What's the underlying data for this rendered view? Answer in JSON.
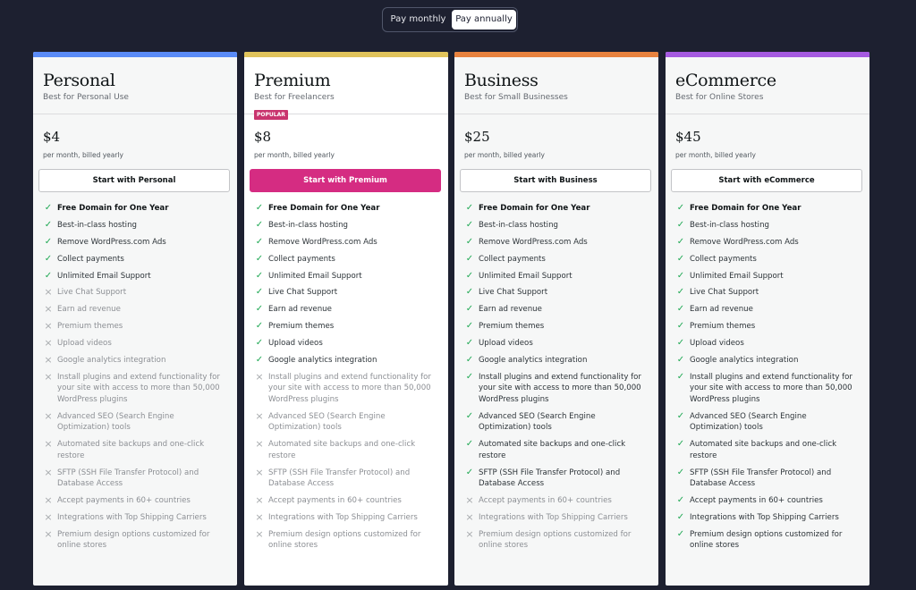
{
  "billing_toggle": {
    "monthly": "Pay monthly",
    "annually": "Pay annually"
  },
  "colors": {
    "background": "#1d2030",
    "personal_accent": "#5a8bf7",
    "premium_accent": "#e0c35b",
    "business_accent": "#e8823e",
    "ecommerce_accent": "#a55ae0",
    "cta_primary": "#d52c82",
    "popular_badge": "#c9356e",
    "check": "#1fa853",
    "cross": "#a7aaad"
  },
  "plans": [
    {
      "name": "Personal",
      "tagline": "Best for Personal Use",
      "price": "$4",
      "billing": "per month, billed yearly",
      "cta": "Start with Personal",
      "features": [
        {
          "text": "Free Domain for One Year",
          "included": true,
          "bold": true
        },
        {
          "text": "Best-in-class hosting",
          "included": true
        },
        {
          "text": "Remove WordPress.com Ads",
          "included": true
        },
        {
          "text": "Collect payments",
          "included": true
        },
        {
          "text": "Unlimited Email Support",
          "included": true
        },
        {
          "text": "Live Chat Support",
          "included": false
        },
        {
          "text": "Earn ad revenue",
          "included": false
        },
        {
          "text": "Premium themes",
          "included": false
        },
        {
          "text": "Upload videos",
          "included": false
        },
        {
          "text": "Google analytics integration",
          "included": false
        },
        {
          "text": "Install plugins and extend functionality for your site with access to more than 50,000 WordPress plugins",
          "included": false
        },
        {
          "text": "Advanced SEO (Search Engine Optimization) tools",
          "included": false
        },
        {
          "text": "Automated site backups and one-click restore",
          "included": false
        },
        {
          "text": "SFTP (SSH File Transfer Protocol) and Database Access",
          "included": false
        },
        {
          "text": "Accept payments in 60+ countries",
          "included": false
        },
        {
          "text": "Integrations with Top Shipping Carriers",
          "included": false
        },
        {
          "text": "Premium design options customized for online stores",
          "included": false
        }
      ]
    },
    {
      "name": "Premium",
      "tagline": "Best for Freelancers",
      "badge": "POPULAR",
      "price": "$8",
      "billing": "per month, billed yearly",
      "cta": "Start with Premium",
      "features": [
        {
          "text": "Free Domain for One Year",
          "included": true,
          "bold": true
        },
        {
          "text": "Best-in-class hosting",
          "included": true
        },
        {
          "text": "Remove WordPress.com Ads",
          "included": true
        },
        {
          "text": "Collect payments",
          "included": true
        },
        {
          "text": "Unlimited Email Support",
          "included": true
        },
        {
          "text": "Live Chat Support",
          "included": true
        },
        {
          "text": "Earn ad revenue",
          "included": true
        },
        {
          "text": "Premium themes",
          "included": true
        },
        {
          "text": "Upload videos",
          "included": true
        },
        {
          "text": "Google analytics integration",
          "included": true
        },
        {
          "text": "Install plugins and extend functionality for your site with access to more than 50,000 WordPress plugins",
          "included": false
        },
        {
          "text": "Advanced SEO (Search Engine Optimization) tools",
          "included": false
        },
        {
          "text": "Automated site backups and one-click restore",
          "included": false
        },
        {
          "text": "SFTP (SSH File Transfer Protocol) and Database Access",
          "included": false
        },
        {
          "text": "Accept payments in 60+ countries",
          "included": false
        },
        {
          "text": "Integrations with Top Shipping Carriers",
          "included": false
        },
        {
          "text": "Premium design options customized for online stores",
          "included": false
        }
      ]
    },
    {
      "name": "Business",
      "tagline": "Best for Small Businesses",
      "price": "$25",
      "billing": "per month, billed yearly",
      "cta": "Start with Business",
      "features": [
        {
          "text": "Free Domain for One Year",
          "included": true,
          "bold": true
        },
        {
          "text": "Best-in-class hosting",
          "included": true
        },
        {
          "text": "Remove WordPress.com Ads",
          "included": true
        },
        {
          "text": "Collect payments",
          "included": true
        },
        {
          "text": "Unlimited Email Support",
          "included": true
        },
        {
          "text": "Live Chat Support",
          "included": true
        },
        {
          "text": "Earn ad revenue",
          "included": true
        },
        {
          "text": "Premium themes",
          "included": true
        },
        {
          "text": "Upload videos",
          "included": true
        },
        {
          "text": "Google analytics integration",
          "included": true
        },
        {
          "text": "Install plugins and extend functionality for your site with access to more than 50,000 WordPress plugins",
          "included": true
        },
        {
          "text": "Advanced SEO (Search Engine Optimization) tools",
          "included": true
        },
        {
          "text": "Automated site backups and one-click restore",
          "included": true
        },
        {
          "text": "SFTP (SSH File Transfer Protocol) and Database Access",
          "included": true
        },
        {
          "text": "Accept payments in 60+ countries",
          "included": false
        },
        {
          "text": "Integrations with Top Shipping Carriers",
          "included": false
        },
        {
          "text": "Premium design options customized for online stores",
          "included": false
        }
      ]
    },
    {
      "name": "eCommerce",
      "tagline": "Best for Online Stores",
      "price": "$45",
      "billing": "per month, billed yearly",
      "cta": "Start with eCommerce",
      "features": [
        {
          "text": "Free Domain for One Year",
          "included": true,
          "bold": true
        },
        {
          "text": "Best-in-class hosting",
          "included": true
        },
        {
          "text": "Remove WordPress.com Ads",
          "included": true
        },
        {
          "text": "Collect payments",
          "included": true
        },
        {
          "text": "Unlimited Email Support",
          "included": true
        },
        {
          "text": "Live Chat Support",
          "included": true
        },
        {
          "text": "Earn ad revenue",
          "included": true
        },
        {
          "text": "Premium themes",
          "included": true
        },
        {
          "text": "Upload videos",
          "included": true
        },
        {
          "text": "Google analytics integration",
          "included": true
        },
        {
          "text": "Install plugins and extend functionality for your site with access to more than 50,000 WordPress plugins",
          "included": true
        },
        {
          "text": "Advanced SEO (Search Engine Optimization) tools",
          "included": true
        },
        {
          "text": "Automated site backups and one-click restore",
          "included": true
        },
        {
          "text": "SFTP (SSH File Transfer Protocol) and Database Access",
          "included": true
        },
        {
          "text": "Accept payments in 60+ countries",
          "included": true
        },
        {
          "text": "Integrations with Top Shipping Carriers",
          "included": true
        },
        {
          "text": "Premium design options customized for online stores",
          "included": true
        }
      ]
    }
  ]
}
